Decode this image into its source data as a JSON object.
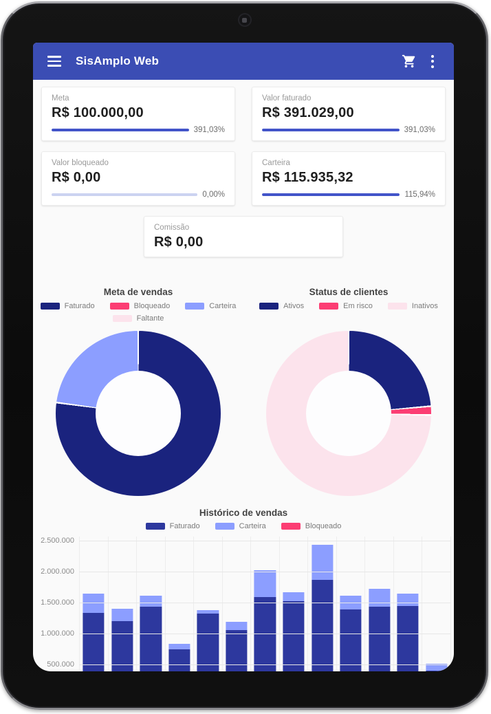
{
  "app_bar": {
    "title": "SisAmplo Web"
  },
  "colors": {
    "app_bar": "#3b4db4",
    "progress_fill": "#4254c9",
    "progress_track": "#ccd3f1",
    "navy": "#1a237e",
    "bar_navy": "#2d389e",
    "periwinkle": "#8c9eff",
    "pink": "#fc3d73",
    "pale_pink": "#fce3ec"
  },
  "cards": [
    {
      "label": "Meta",
      "value": "R$ 100.000,00",
      "pct_label": "391,03%",
      "fill_pct": 100
    },
    {
      "label": "Valor faturado",
      "value": "R$ 391.029,00",
      "pct_label": "391,03%",
      "fill_pct": 100
    },
    {
      "label": "Valor bloqueado",
      "value": "R$ 0,00",
      "pct_label": "0,00%",
      "fill_pct": 0
    },
    {
      "label": "Carteira",
      "value": "R$ 115.935,32",
      "pct_label": "115,94%",
      "fill_pct": 100
    }
  ],
  "commission_card": {
    "label": "Comissão",
    "value": "R$ 0,00"
  },
  "chart_data": [
    {
      "type": "pie",
      "title": "Meta de vendas",
      "legend_position": "top",
      "donut": true,
      "segments": [
        {
          "label": "Faturado",
          "pct": 77.1,
          "color": "#1a237e"
        },
        {
          "label": "Bloqueado",
          "pct": 0,
          "color": "#fc3d73"
        },
        {
          "label": "Carteira",
          "pct": 22.9,
          "color": "#8c9eff"
        },
        {
          "label": "Faltante",
          "pct": 0,
          "color": "#fce3ec"
        }
      ]
    },
    {
      "type": "pie",
      "title": "Status de clientes",
      "legend_position": "top",
      "donut": true,
      "segments": [
        {
          "label": "Ativos",
          "pct": 23.6,
          "color": "#1a237e"
        },
        {
          "label": "Em risco",
          "pct": 1.7,
          "color": "#fc3d73"
        },
        {
          "label": "Inativos",
          "pct": 74.7,
          "color": "#fce3ec"
        }
      ]
    },
    {
      "type": "bar",
      "stacked": true,
      "title": "Histórico de vendas",
      "legend_position": "top",
      "grid": true,
      "ylim": [
        0,
        2500000
      ],
      "y_ticks": [
        {
          "value": 2500000,
          "label": "2.500.000"
        },
        {
          "value": 2000000,
          "label": "2.000.000"
        },
        {
          "value": 1500000,
          "label": "1.500.000"
        },
        {
          "value": 1000000,
          "label": "1.000.000"
        },
        {
          "value": 500000,
          "label": "500.000"
        }
      ],
      "x_tick_labels_visible": false,
      "series": [
        {
          "name": "Faturado",
          "color": "#2d389e",
          "values": [
            1330000,
            1200000,
            1430000,
            750000,
            1320000,
            1060000,
            1590000,
            1520000,
            1870000,
            1390000,
            1430000,
            1450000,
            400000
          ]
        },
        {
          "name": "Carteira",
          "color": "#8c9eff",
          "values": [
            320000,
            200000,
            180000,
            80000,
            60000,
            130000,
            430000,
            150000,
            560000,
            220000,
            290000,
            200000,
            110000
          ]
        },
        {
          "name": "Bloqueado",
          "color": "#fc3d73",
          "values": [
            0,
            0,
            0,
            0,
            0,
            0,
            0,
            0,
            0,
            0,
            0,
            0,
            0
          ]
        }
      ]
    }
  ]
}
